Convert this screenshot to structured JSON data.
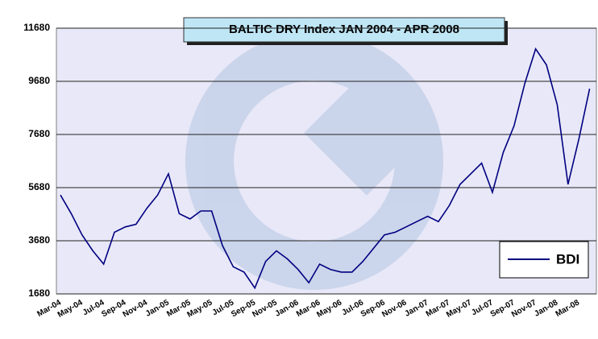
{
  "chart_data": {
    "type": "line",
    "title": "BALTIC DRY Index JAN 2004 - APR 2008",
    "categories": [
      "Mar-04",
      null,
      "May-04",
      null,
      "Jul-04",
      null,
      "Sep-04",
      null,
      "Nov-04",
      null,
      "Jan-05",
      null,
      "Mar-05",
      null,
      "May-05",
      null,
      "Jul-05",
      null,
      "Sep-05",
      null,
      "Nov-05",
      null,
      "Jan-06",
      null,
      "Mar-06",
      null,
      "May-06",
      null,
      "Jul-06",
      null,
      "Sep-06",
      null,
      "Nov-06",
      null,
      "Jan-07",
      null,
      "Mar-07",
      null,
      "May-07",
      null,
      "Jul-07",
      null,
      "Sep-07",
      null,
      "Nov-07",
      null,
      "Jan-08",
      null,
      "Mar-08",
      null
    ],
    "series": [
      {
        "name": "BDI",
        "color": "#000080",
        "values": [
          5400,
          4700,
          3900,
          3300,
          2800,
          4000,
          4200,
          4300,
          4900,
          5400,
          6200,
          4700,
          4500,
          4800,
          4800,
          3500,
          2700,
          2500,
          1900,
          2900,
          3300,
          3000,
          2600,
          2100,
          2800,
          2600,
          2500,
          2500,
          2900,
          3400,
          3900,
          4000,
          4200,
          4400,
          4600,
          4400,
          5000,
          5800,
          6200,
          6600,
          5500,
          7000,
          8000,
          9600,
          10900,
          10300,
          8800,
          5800,
          7500,
          9400
        ]
      }
    ],
    "ylim": [
      1680,
      11680
    ],
    "yticks": [
      1680,
      3680,
      5680,
      7680,
      9680,
      11680
    ],
    "grid": true,
    "legend": "bottom-right"
  }
}
